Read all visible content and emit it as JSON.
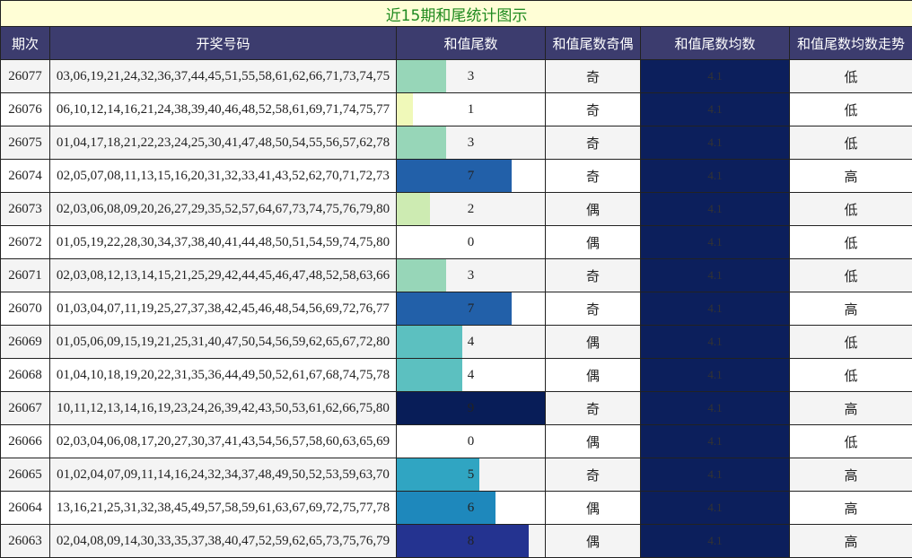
{
  "title": "近15期和尾统计图示",
  "headers": [
    "期次",
    "开奖号码",
    "和值尾数",
    "和值尾数奇偶",
    "和值尾数均数",
    "和值尾数均数走势"
  ],
  "tail_colors": [
    "#ffffff",
    "#f0f9b9",
    "#cdebb2",
    "#97d6b8",
    "#5cc0c0",
    "#30a5c2",
    "#1e88bc",
    "#2260a9",
    "#243390",
    "#081d58"
  ],
  "rows": [
    [
      "26077",
      "03,06,19,21,24,32,36,37,44,45,51,55,58,61,62,66,71,73,74,75",
      3,
      "奇",
      4.1,
      "低"
    ],
    [
      "26076",
      "06,10,12,14,16,21,24,38,39,40,46,48,52,58,61,69,71,74,75,77",
      1,
      "奇",
      4.1,
      "低"
    ],
    [
      "26075",
      "01,04,17,18,21,22,23,24,25,30,41,47,48,50,54,55,56,57,62,78",
      3,
      "奇",
      4.1,
      "低"
    ],
    [
      "26074",
      "02,05,07,08,11,13,15,16,20,31,32,33,41,43,52,62,70,71,72,73",
      7,
      "奇",
      4.1,
      "高"
    ],
    [
      "26073",
      "02,03,06,08,09,20,26,27,29,35,52,57,64,67,73,74,75,76,79,80",
      2,
      "偶",
      4.1,
      "低"
    ],
    [
      "26072",
      "01,05,19,22,28,30,34,37,38,40,41,44,48,50,51,54,59,74,75,80",
      0,
      "偶",
      4.1,
      "低"
    ],
    [
      "26071",
      "02,03,08,12,13,14,15,21,25,29,42,44,45,46,47,48,52,58,63,66",
      3,
      "奇",
      4.1,
      "低"
    ],
    [
      "26070",
      "01,03,04,07,11,19,25,27,37,38,42,45,46,48,54,56,69,72,76,77",
      7,
      "奇",
      4.1,
      "高"
    ],
    [
      "26069",
      "01,05,06,09,15,19,21,25,31,40,47,50,54,56,59,62,65,67,72,80",
      4,
      "偶",
      4.1,
      "低"
    ],
    [
      "26068",
      "01,04,10,18,19,20,22,31,35,36,44,49,50,52,61,67,68,74,75,78",
      4,
      "偶",
      4.1,
      "低"
    ],
    [
      "26067",
      "10,11,12,13,14,16,19,23,24,26,39,42,43,50,53,61,62,66,75,80",
      9,
      "奇",
      4.1,
      "高"
    ],
    [
      "26066",
      "02,03,04,06,08,17,20,27,30,37,41,43,54,56,57,58,60,63,65,69",
      0,
      "偶",
      4.1,
      "低"
    ],
    [
      "26065",
      "01,02,04,07,09,11,14,16,24,32,34,37,48,49,50,52,53,59,63,70",
      5,
      "奇",
      4.1,
      "高"
    ],
    [
      "26064",
      "13,16,21,25,31,32,38,45,49,57,58,59,61,63,67,69,72,75,77,78",
      6,
      "偶",
      4.1,
      "高"
    ],
    [
      "26063",
      "02,04,08,09,14,30,33,35,37,38,40,47,52,59,62,65,73,75,76,79",
      8,
      "偶",
      4.1,
      "高"
    ]
  ]
}
